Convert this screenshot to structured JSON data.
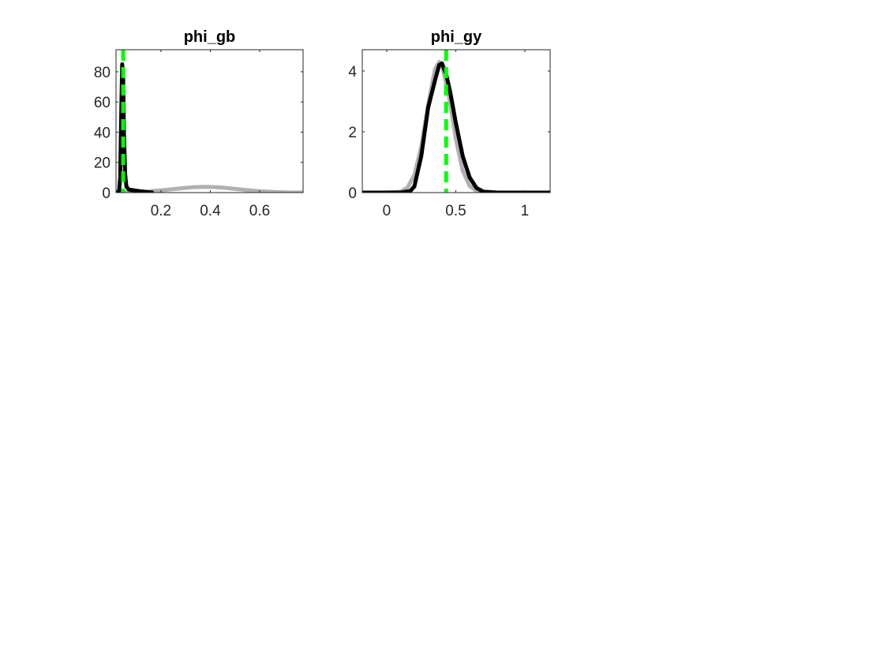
{
  "chart_data": [
    {
      "type": "line",
      "title": "phi_gb",
      "xlim": [
        0.018,
        0.776
      ],
      "ylim": [
        0,
        94.6
      ],
      "xticks": [
        0.2,
        0.4,
        0.6
      ],
      "yticks": [
        0,
        20,
        40,
        60,
        80
      ],
      "series": [
        {
          "color": "#b0b0b0",
          "x": [
            0.018,
            0.06,
            0.1,
            0.14,
            0.18,
            0.22,
            0.26,
            0.3,
            0.34,
            0.38,
            0.42,
            0.46,
            0.5,
            0.54,
            0.58,
            0.62,
            0.66,
            0.7,
            0.74,
            0.776
          ],
          "values": [
            0.08,
            0.18,
            0.37,
            0.69,
            1.16,
            1.78,
            2.48,
            3.14,
            3.63,
            3.8,
            3.63,
            3.14,
            2.48,
            1.78,
            1.16,
            0.69,
            0.37,
            0.18,
            0.08,
            0.04
          ]
        },
        {
          "color": "#000000",
          "x": [
            0.018,
            0.03,
            0.035,
            0.04,
            0.043,
            0.047,
            0.05,
            0.055,
            0.06,
            0.07,
            0.09,
            0.11,
            0.13,
            0.15,
            0.17
          ],
          "values": [
            0,
            0.5,
            10,
            60,
            85,
            75,
            40,
            12,
            4,
            2,
            1.5,
            1,
            0.6,
            0.2,
            0
          ]
        }
      ],
      "vline": {
        "x": 0.047,
        "color": "#00ff00",
        "linestyle": "dashed"
      }
    },
    {
      "type": "line",
      "title": "phi_gy",
      "xlim": [
        -0.177,
        1.183
      ],
      "ylim": [
        0,
        4.7
      ],
      "xticks": [
        0,
        0.5,
        1
      ],
      "yticks": [
        0,
        2,
        4
      ],
      "series": [
        {
          "color": "#b0b0b0",
          "x": [
            -0.177,
            0,
            0.1,
            0.15,
            0.2,
            0.25,
            0.3,
            0.35,
            0.38,
            0.4,
            0.45,
            0.5,
            0.55,
            0.6,
            0.65,
            0.7,
            0.8,
            1.183
          ],
          "values": [
            0,
            0,
            0.03,
            0.16,
            0.58,
            1.51,
            2.9,
            4.07,
            4.3,
            4.19,
            3.18,
            1.77,
            0.72,
            0.22,
            0.05,
            0.01,
            0,
            0
          ]
        },
        {
          "color": "#000000",
          "x": [
            -0.177,
            0.1,
            0.17,
            0.2,
            0.25,
            0.3,
            0.35,
            0.38,
            0.4,
            0.43,
            0.46,
            0.5,
            0.55,
            0.6,
            0.65,
            0.7,
            0.8,
            1.183
          ],
          "values": [
            0,
            0,
            0.05,
            0.2,
            1.2,
            2.8,
            3.7,
            4.2,
            4.25,
            3.9,
            3.3,
            2.3,
            1.2,
            0.5,
            0.15,
            0.03,
            0,
            0
          ]
        }
      ],
      "vline": {
        "x": 0.43,
        "color": "#00ff00",
        "linestyle": "dashed"
      }
    }
  ]
}
